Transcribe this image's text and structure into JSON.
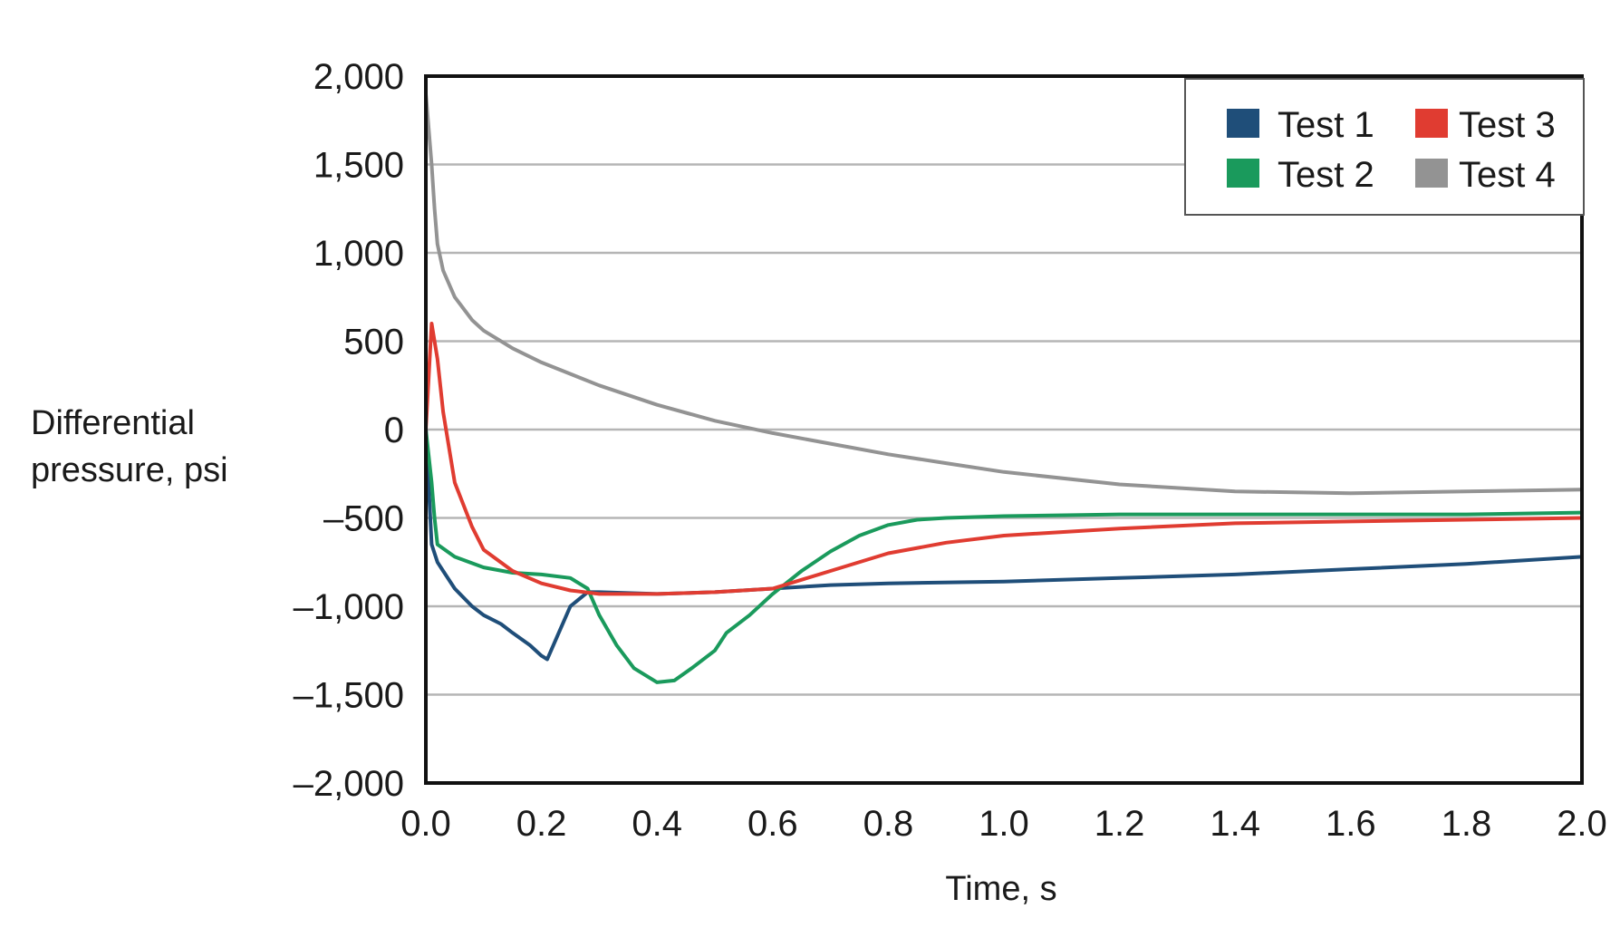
{
  "chart_data": {
    "type": "line",
    "title": "",
    "xlabel": "Time, s",
    "ylabel_lines": [
      "Differential",
      "pressure, psi"
    ],
    "xlim": [
      0.0,
      2.0
    ],
    "ylim": [
      -2000,
      2000
    ],
    "x_ticks": [
      0.0,
      0.2,
      0.4,
      0.6,
      0.8,
      1.0,
      1.2,
      1.4,
      1.6,
      1.8,
      2.0
    ],
    "x_tick_labels": [
      "0.0",
      "0.2",
      "0.4",
      "0.6",
      "0.8",
      "1.0",
      "1.2",
      "1.4",
      "1.6",
      "1.8",
      "2.0"
    ],
    "y_ticks": [
      2000,
      1500,
      1000,
      500,
      0,
      -500,
      -1000,
      -1500,
      -2000
    ],
    "y_tick_labels": [
      "2,000",
      "1,500",
      "1,000",
      "500",
      "0",
      "–500",
      "–1,000",
      "–1,500",
      "–2,000"
    ],
    "grid": "horizontal",
    "legend_position": "top-right",
    "series": [
      {
        "name": "Test 1",
        "color": "#1f4e79",
        "x": [
          0.0,
          0.01,
          0.02,
          0.03,
          0.05,
          0.08,
          0.1,
          0.13,
          0.15,
          0.18,
          0.2,
          0.21,
          0.23,
          0.25,
          0.28,
          0.3,
          0.4,
          0.5,
          0.6,
          0.7,
          0.8,
          1.0,
          1.2,
          1.4,
          1.6,
          1.8,
          2.0
        ],
        "y": [
          0,
          -650,
          -750,
          -800,
          -900,
          -1000,
          -1050,
          -1100,
          -1150,
          -1220,
          -1280,
          -1300,
          -1150,
          -1000,
          -920,
          -920,
          -930,
          -920,
          -900,
          -880,
          -870,
          -860,
          -840,
          -820,
          -790,
          -760,
          -720
        ]
      },
      {
        "name": "Test 2",
        "color": "#1a9a5c",
        "x": [
          0.0,
          0.01,
          0.015,
          0.02,
          0.05,
          0.1,
          0.15,
          0.2,
          0.25,
          0.28,
          0.3,
          0.33,
          0.36,
          0.4,
          0.43,
          0.46,
          0.5,
          0.52,
          0.56,
          0.6,
          0.65,
          0.7,
          0.75,
          0.8,
          0.85,
          0.9,
          1.0,
          1.2,
          1.4,
          1.6,
          1.8,
          2.0
        ],
        "y": [
          0,
          -300,
          -500,
          -650,
          -720,
          -780,
          -810,
          -820,
          -840,
          -900,
          -1050,
          -1220,
          -1350,
          -1430,
          -1420,
          -1350,
          -1250,
          -1150,
          -1050,
          -930,
          -800,
          -690,
          -600,
          -540,
          -510,
          -500,
          -490,
          -480,
          -480,
          -480,
          -480,
          -470
        ]
      },
      {
        "name": "Test 3",
        "color": "#e03c31",
        "x": [
          0.0,
          0.01,
          0.02,
          0.03,
          0.05,
          0.08,
          0.1,
          0.15,
          0.2,
          0.25,
          0.3,
          0.35,
          0.4,
          0.5,
          0.6,
          0.7,
          0.8,
          0.9,
          1.0,
          1.2,
          1.4,
          1.6,
          1.8,
          2.0
        ],
        "y": [
          0,
          600,
          400,
          100,
          -300,
          -550,
          -680,
          -800,
          -870,
          -910,
          -930,
          -930,
          -930,
          -920,
          -900,
          -800,
          -700,
          -640,
          -600,
          -560,
          -530,
          -520,
          -510,
          -500
        ]
      },
      {
        "name": "Test 4",
        "color": "#939393",
        "x": [
          0.0,
          0.005,
          0.01,
          0.015,
          0.02,
          0.03,
          0.05,
          0.08,
          0.1,
          0.15,
          0.2,
          0.3,
          0.4,
          0.5,
          0.6,
          0.7,
          0.8,
          0.9,
          1.0,
          1.2,
          1.4,
          1.6,
          1.8,
          2.0
        ],
        "y": [
          1900,
          1700,
          1500,
          1250,
          1050,
          900,
          750,
          620,
          560,
          460,
          380,
          250,
          140,
          50,
          -20,
          -80,
          -140,
          -190,
          -240,
          -310,
          -350,
          -360,
          -350,
          -340
        ]
      }
    ]
  }
}
